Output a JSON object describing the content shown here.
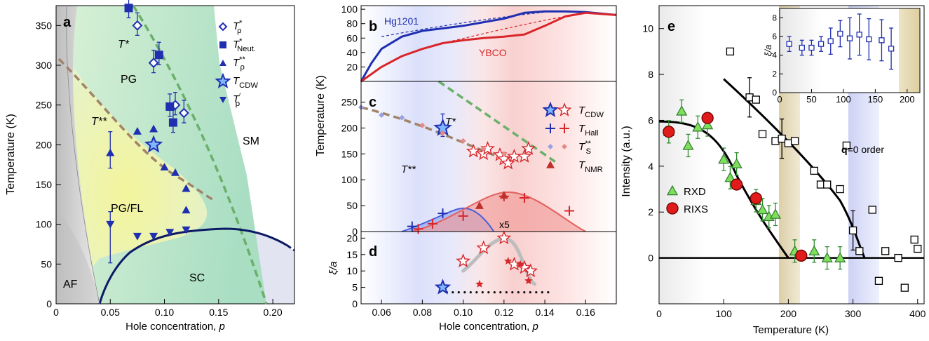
{
  "panels": {
    "a": {
      "letter": "a",
      "ylabel": "Temperature (K)",
      "xlabel_prefix": "Hole concentration, ",
      "xlabel_var": "p",
      "xticks": [
        "0",
        "0.05",
        "0.10",
        "0.15",
        "0.20"
      ],
      "yticks": [
        "0",
        "50",
        "100",
        "150",
        "200",
        "250",
        "300",
        "350"
      ],
      "region_labels": [
        "PG",
        "PG/FL",
        "SM",
        "SC",
        "AF",
        "T*",
        "T**"
      ],
      "legend": [
        {
          "base": "T",
          "sup": "*",
          "sub": "ρ",
          "marker": "open-diamond"
        },
        {
          "base": "T",
          "sup": "*",
          "sub": "Neut.",
          "marker": "square"
        },
        {
          "base": "T",
          "sup": "**",
          "sub": "ρ",
          "marker": "triangle-up"
        },
        {
          "base": "T",
          "sup": "",
          "sub": "CDW",
          "marker": "star"
        },
        {
          "base": "T",
          "sup": "′",
          "sub": "ρ",
          "marker": "triangle-down"
        }
      ]
    },
    "b": {
      "letter": "b",
      "yticks": [
        "20",
        "40",
        "60",
        "80",
        "100"
      ],
      "labels": [
        "Hg1201",
        "YBCO"
      ]
    },
    "c": {
      "letter": "c",
      "yticks": [
        "0",
        "50",
        "100",
        "150",
        "200",
        "250"
      ],
      "labels": [
        "T*",
        "T**",
        "x5"
      ],
      "legend": [
        {
          "base": "T",
          "sup": "",
          "sub": "CDW"
        },
        {
          "base": "T",
          "sup": "",
          "sub": "Hall"
        },
        {
          "base": "T",
          "sup": "**",
          "sub": "S"
        },
        {
          "base": "T",
          "sup": "",
          "sub": "NMR"
        }
      ]
    },
    "d": {
      "letter": "d",
      "ylabel": "ξ/a",
      "yticks": [
        "0",
        "5",
        "10",
        "15",
        "20"
      ]
    },
    "bcd": {
      "ylabel": "Temperature (K)",
      "xlabel_prefix": "Hole concentration, ",
      "xlabel_var": "p",
      "xticks": [
        "0.06",
        "0.08",
        "0.10",
        "0.12",
        "0.14",
        "0.16"
      ]
    },
    "e": {
      "letter": "e",
      "ylabel": "Intensity (a.u.)",
      "xlabel": "Temperature (K)",
      "xticks": [
        "0",
        "100",
        "200",
        "300",
        "400"
      ],
      "yticks": [
        "0",
        "2",
        "4",
        "6",
        "8",
        "10"
      ],
      "q_label_bold": "q",
      "q_label_rest": "=0 order",
      "legend": [
        "RXD",
        "RIXS"
      ],
      "inset": {
        "ylabel": "ξ/a",
        "xticks": [
          "0",
          "50",
          "100",
          "150",
          "200"
        ],
        "yticks": [
          "0",
          "2",
          "4",
          "6",
          "8"
        ]
      }
    }
  },
  "colors": {
    "blue": "#1f2fb0",
    "red": "#d8262a",
    "green": "#3fa33f",
    "sc_navy": "#0c1a66",
    "gray_dash": "#999999",
    "pink_diamond": "#e58a8a"
  },
  "chart_data": [
    {
      "type": "scatter",
      "title": "a",
      "xlabel": "Hole concentration, p",
      "ylabel": "Temperature (K)",
      "xlim": [
        0,
        0.22
      ],
      "ylim": [
        0,
        375
      ],
      "series": [
        {
          "name": "T*ρ",
          "points": [
            [
              0.075,
              350
            ],
            [
              0.09,
              303
            ],
            [
              0.11,
              250
            ],
            [
              0.118,
              240
            ]
          ]
        },
        {
          "name": "T*Neut.",
          "points": [
            [
              0.067,
              372
            ],
            [
              0.095,
              313
            ],
            [
              0.105,
              248
            ],
            [
              0.108,
              228
            ]
          ]
        },
        {
          "name": "T**ρ",
          "points": [
            [
              0.05,
              190
            ],
            [
              0.075,
              217
            ],
            [
              0.09,
              220
            ],
            [
              0.1,
              172
            ],
            [
              0.11,
              165
            ],
            [
              0.12,
              145
            ],
            [
              0.12,
              118
            ]
          ]
        },
        {
          "name": "TCDW",
          "points": [
            [
              0.09,
              200
            ]
          ]
        },
        {
          "name": "T′ρ",
          "points": [
            [
              0.05,
              100
            ],
            [
              0.075,
              85
            ],
            [
              0.09,
              85
            ],
            [
              0.105,
              90
            ],
            [
              0.12,
              93
            ]
          ]
        }
      ],
      "boundaries": {
        "T_star": [
          [
            0.07,
            360
          ],
          [
            0.19,
            0
          ]
        ],
        "T_double_star": [
          [
            0.015,
            320
          ],
          [
            0.05,
            270
          ],
          [
            0.09,
            215
          ],
          [
            0.115,
            165
          ],
          [
            0.13,
            145
          ]
        ],
        "SC_dome": [
          [
            0.04,
            0
          ],
          [
            0.06,
            50
          ],
          [
            0.09,
            78
          ],
          [
            0.12,
            93
          ],
          [
            0.16,
            96
          ],
          [
            0.2,
            82
          ],
          [
            0.22,
            68
          ]
        ]
      }
    },
    {
      "type": "line",
      "title": "b",
      "xlim": [
        0.05,
        0.175
      ],
      "ylim": [
        0,
        105
      ],
      "series": [
        {
          "name": "Hg1201",
          "x": [
            0.05,
            0.055,
            0.06,
            0.07,
            0.08,
            0.1,
            0.12,
            0.13,
            0.14,
            0.15,
            0.16,
            0.175
          ],
          "y": [
            0,
            25,
            45,
            62,
            70,
            77,
            87,
            95,
            97,
            97,
            96,
            92
          ]
        },
        {
          "name": "YBCO",
          "x": [
            0.05,
            0.06,
            0.07,
            0.08,
            0.09,
            0.1,
            0.11,
            0.12,
            0.13,
            0.14,
            0.15,
            0.16,
            0.175
          ],
          "y": [
            0,
            20,
            35,
            45,
            53,
            57,
            60,
            62,
            65,
            77,
            90,
            95,
            92
          ]
        }
      ]
    },
    {
      "type": "scatter",
      "title": "c",
      "xlim": [
        0.05,
        0.175
      ],
      "ylim": [
        0,
        290
      ],
      "series": [
        {
          "name": "TCDW (Hg1201)",
          "points": [
            [
              0.09,
              200
            ]
          ]
        },
        {
          "name": "TCDW (YBCO)",
          "points": [
            [
              0.105,
              155
            ],
            [
              0.11,
              150
            ],
            [
              0.112,
              160
            ],
            [
              0.118,
              148
            ],
            [
              0.12,
              140
            ],
            [
              0.122,
              132
            ],
            [
              0.125,
              145
            ],
            [
              0.13,
              145
            ],
            [
              0.132,
              160
            ]
          ]
        },
        {
          "name": "THall (Hg1201)",
          "points": [
            [
              0.075,
              10
            ],
            [
              0.09,
              35
            ]
          ]
        },
        {
          "name": "THall (YBCO)",
          "points": [
            [
              0.078,
              5
            ],
            [
              0.085,
              15
            ],
            [
              0.1,
              30
            ],
            [
              0.12,
              68
            ],
            [
              0.13,
              65
            ],
            [
              0.152,
              40
            ]
          ]
        },
        {
          "name": "T**S",
          "points": [
            [
              0.05,
              240
            ],
            [
              0.06,
              225
            ],
            [
              0.07,
              220
            ],
            [
              0.08,
              205
            ],
            [
              0.09,
              190
            ],
            [
              0.1,
              175
            ],
            [
              0.11,
              160
            ],
            [
              0.12,
              150
            ]
          ]
        },
        {
          "name": "TNMR",
          "points": [
            [
              0.108,
              50
            ],
            [
              0.12,
              70
            ]
          ]
        }
      ]
    },
    {
      "type": "scatter",
      "title": "d",
      "ylabel": "ξ/a",
      "xlim": [
        0.05,
        0.175
      ],
      "ylim": [
        0,
        22
      ],
      "series": [
        {
          "name": "YBCO open stars",
          "points": [
            [
              0.1,
              13
            ],
            [
              0.11,
              17
            ],
            [
              0.12,
              20
            ],
            [
              0.125,
              12
            ],
            [
              0.13,
              11
            ],
            [
              0.133,
              10
            ]
          ]
        },
        {
          "name": "YBCO filled stars",
          "points": [
            [
              0.108,
              6
            ],
            [
              0.122,
              13
            ],
            [
              0.128,
              12
            ],
            [
              0.132,
              7
            ]
          ]
        },
        {
          "name": "Hg1201",
          "points": [
            [
              0.09,
              5
            ]
          ]
        }
      ]
    },
    {
      "type": "scatter",
      "title": "e",
      "xlabel": "Temperature (K)",
      "ylabel": "Intensity (a.u.)",
      "xlim": [
        0,
        410
      ],
      "ylim": [
        -2,
        11
      ],
      "series": [
        {
          "name": "RXD",
          "points": [
            [
              15,
              5.5
            ],
            [
              35,
              6.4
            ],
            [
              45,
              4.9
            ],
            [
              60,
              5.7
            ],
            [
              75,
              5.8
            ],
            [
              100,
              4.3
            ],
            [
              110,
              3.5
            ],
            [
              120,
              4.1
            ],
            [
              150,
              2.5
            ],
            [
              160,
              2.1
            ],
            [
              170,
              1.8
            ],
            [
              180,
              1.9
            ],
            [
              210,
              0.3
            ],
            [
              240,
              0.3
            ],
            [
              260,
              0
            ],
            [
              280,
              0
            ]
          ]
        },
        {
          "name": "RIXS",
          "points": [
            [
              15,
              5.5
            ],
            [
              75,
              6.1
            ],
            [
              120,
              3.2
            ],
            [
              150,
              2.6
            ],
            [
              220,
              0.1
            ]
          ]
        },
        {
          "name": "q=0 order",
          "points": [
            [
              110,
              9
            ],
            [
              140,
              7
            ],
            [
              150,
              6.9
            ],
            [
              160,
              5.4
            ],
            [
              180,
              5.1
            ],
            [
              190,
              5.2
            ],
            [
              200,
              5
            ],
            [
              210,
              5.1
            ],
            [
              240,
              3.8
            ],
            [
              250,
              3.2
            ],
            [
              260,
              3.2
            ],
            [
              280,
              3
            ],
            [
              290,
              4.9
            ],
            [
              300,
              1.2
            ],
            [
              310,
              0.3
            ],
            [
              330,
              2.1
            ],
            [
              340,
              -1
            ],
            [
              350,
              0.3
            ],
            [
              370,
              0
            ],
            [
              380,
              -1.3
            ],
            [
              395,
              0.8
            ],
            [
              400,
              0.4
            ]
          ]
        }
      ]
    },
    {
      "type": "scatter",
      "title": "e inset",
      "ylabel": "ξ/a",
      "xlim": [
        0,
        220
      ],
      "ylim": [
        0,
        9
      ],
      "series": [
        {
          "name": "ξ/a",
          "points": [
            [
              15,
              5.2
            ],
            [
              35,
              4.8
            ],
            [
              50,
              4.8
            ],
            [
              65,
              5.2
            ],
            [
              80,
              5.5
            ],
            [
              95,
              6.3
            ],
            [
              110,
              5.8
            ],
            [
              125,
              6.2
            ],
            [
              140,
              5.7
            ],
            [
              160,
              5.6
            ],
            [
              175,
              4.7
            ]
          ]
        }
      ]
    }
  ]
}
